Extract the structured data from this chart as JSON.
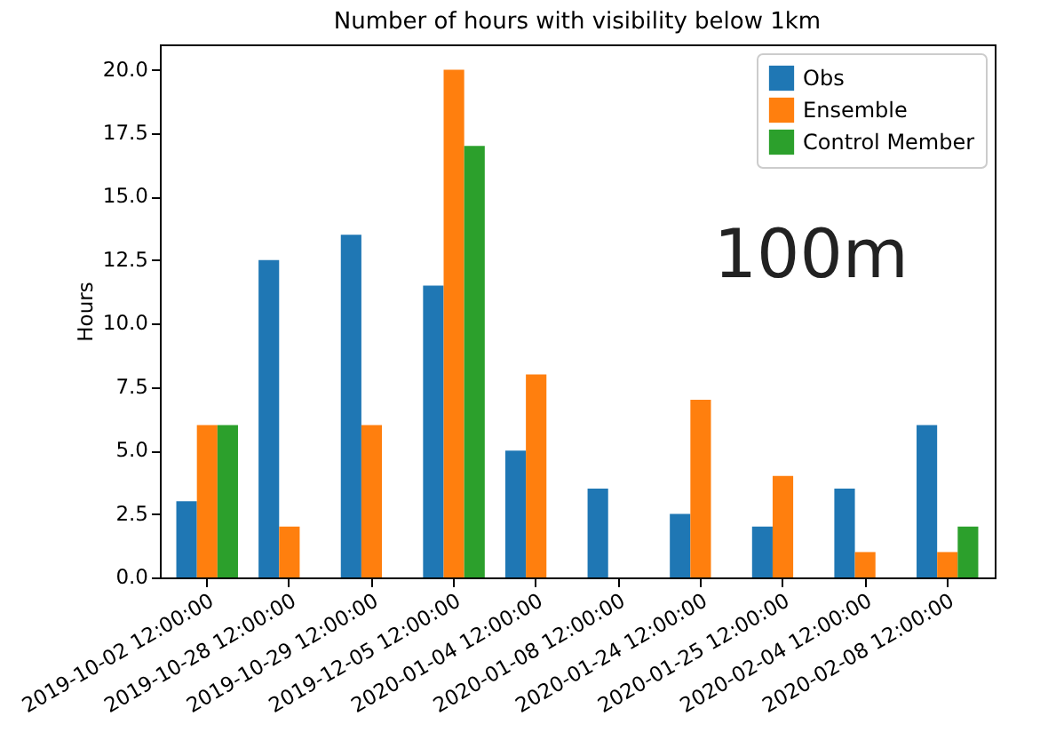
{
  "chart_data": {
    "type": "bar",
    "title": "Number of hours with visibility below 1km",
    "ylabel": "Hours",
    "categories": [
      "2019-10-02 12:00:00",
      "2019-10-28 12:00:00",
      "2019-10-29 12:00:00",
      "2019-12-05 12:00:00",
      "2020-01-04 12:00:00",
      "2020-01-08 12:00:00",
      "2020-01-24 12:00:00",
      "2020-01-25 12:00:00",
      "2020-02-04 12:00:00",
      "2020-02-08 12:00:00"
    ],
    "series": [
      {
        "name": "Obs",
        "color": "#1f77b4",
        "values": [
          3,
          12.5,
          13.5,
          11.5,
          5,
          3.5,
          2.5,
          2,
          3.5,
          6
        ]
      },
      {
        "name": "Ensemble",
        "color": "#ff7f0e",
        "values": [
          6,
          2,
          6,
          20,
          8,
          0,
          7,
          4,
          1,
          1
        ]
      },
      {
        "name": "Control Member",
        "color": "#2ca02c",
        "values": [
          6,
          0,
          0,
          17,
          0,
          0,
          0,
          0,
          0,
          2
        ]
      }
    ],
    "ylim": [
      0,
      21
    ],
    "yticks": [
      {
        "value": 0,
        "label": "0.0"
      },
      2.5,
      {
        "value": 5,
        "label": "5.0"
      },
      7.5,
      {
        "value": 10,
        "label": "10.0"
      },
      12.5,
      {
        "value": 15,
        "label": "15.0"
      },
      17.5,
      {
        "value": 20,
        "label": "20.0"
      }
    ],
    "grid": false,
    "legend": "top right",
    "annotations": [
      "100m"
    ]
  }
}
